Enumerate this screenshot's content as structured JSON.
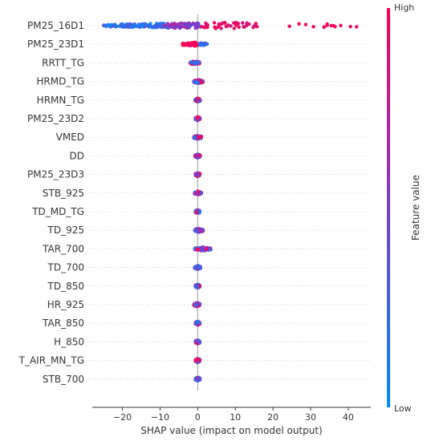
{
  "chart_data": {
    "type": "scatter",
    "subtype": "shap-beeswarm",
    "title": "",
    "xlabel": "SHAP value (impact on model output)",
    "xlim": [
      -28,
      46
    ],
    "xticks": [
      -20,
      -10,
      0,
      10,
      20,
      30,
      40
    ],
    "grid": false,
    "colorbar": {
      "label": "Feature value",
      "high_label": "High",
      "low_label": "Low",
      "low_color": "#008bfb",
      "high_color": "#ff0052",
      "position": "right"
    },
    "features": [
      {
        "name": "PM25_16D1",
        "shap_min": -25,
        "shap_max": 43
      },
      {
        "name": "PM25_23D1",
        "shap_min": -4,
        "shap_max": 3
      },
      {
        "name": "RRTT_TG",
        "shap_min": -2,
        "shap_max": 0.5
      },
      {
        "name": "HRMD_TG",
        "shap_min": -1,
        "shap_max": 1.5
      },
      {
        "name": "HRMN_TG",
        "shap_min": -0.7,
        "shap_max": 0.7
      },
      {
        "name": "PM25_23D2",
        "shap_min": -0.6,
        "shap_max": 0.6
      },
      {
        "name": "VMED",
        "shap_min": -1,
        "shap_max": 1
      },
      {
        "name": "DD",
        "shap_min": -0.7,
        "shap_max": 0.7
      },
      {
        "name": "PM25_23D3",
        "shap_min": -0.6,
        "shap_max": 0.6
      },
      {
        "name": "STB_925",
        "shap_min": -0.8,
        "shap_max": 1
      },
      {
        "name": "TD_MD_TG",
        "shap_min": -0.6,
        "shap_max": 0.6
      },
      {
        "name": "TD_925",
        "shap_min": -0.8,
        "shap_max": 1.5
      },
      {
        "name": "TAR_700",
        "shap_min": -0.8,
        "shap_max": 3.5
      },
      {
        "name": "TD_700",
        "shap_min": -0.8,
        "shap_max": 0.8
      },
      {
        "name": "TD_850",
        "shap_min": -0.6,
        "shap_max": 0.6
      },
      {
        "name": "HR_925",
        "shap_min": -1,
        "shap_max": 0.6
      },
      {
        "name": "TAR_850",
        "shap_min": -0.6,
        "shap_max": 0.6
      },
      {
        "name": "H_850",
        "shap_min": -0.6,
        "shap_max": 0.6
      },
      {
        "name": "T_AIR_MN_TG",
        "shap_min": -0.6,
        "shap_max": 0.6
      },
      {
        "name": "STB_700",
        "shap_min": -0.6,
        "shap_max": 0.6
      }
    ]
  }
}
